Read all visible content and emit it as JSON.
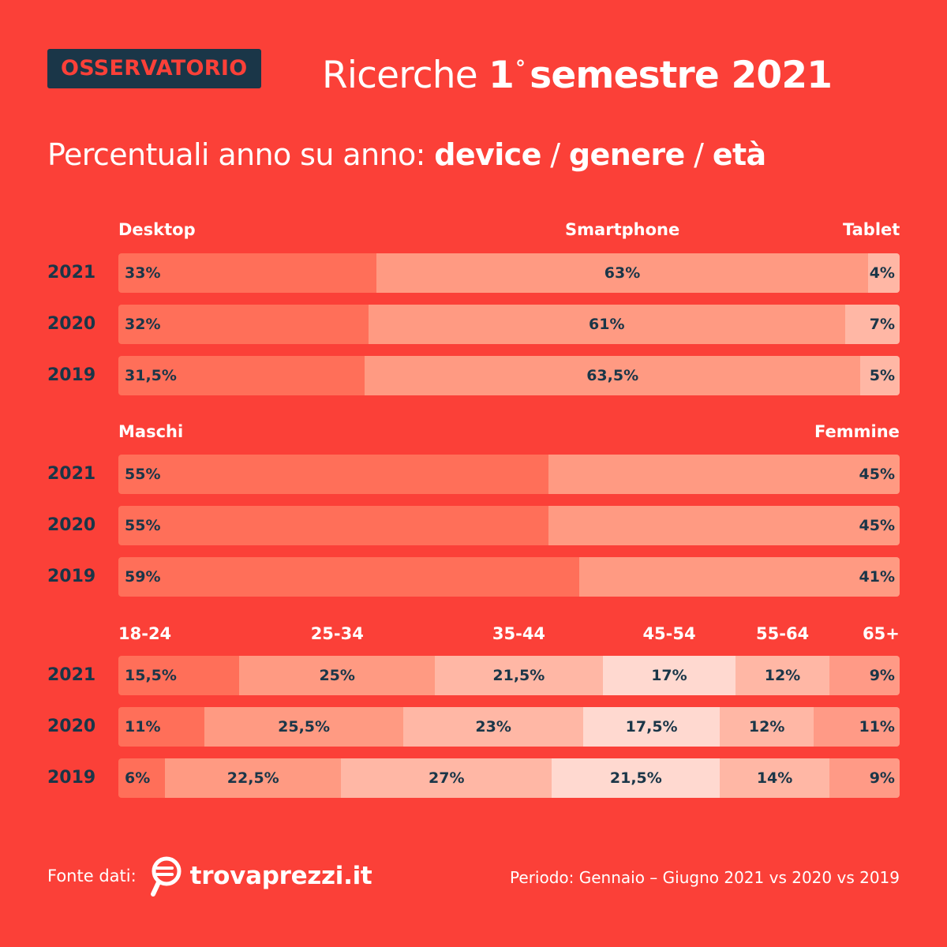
{
  "header": {
    "badge": "OSSERVATORIO",
    "title_prefix": "Ricerche",
    "title_number": "1",
    "title_degree": "°",
    "title_rest": "semestre 2021"
  },
  "subtitle": {
    "prefix": "Percentuali anno su anno:",
    "w1": "device",
    "sep1": "/",
    "w2": "genere",
    "sep2": "/",
    "w3": "età"
  },
  "footer": {
    "source_label": "Fonte dati:",
    "brand": "trovaprezzi.it",
    "period": "Periodo: Gennaio – Giugno 2021 vs 2020 vs 2019"
  },
  "colors": {
    "background": "#FB4038",
    "dark": "#1A3648",
    "seg1": "#FF6F59",
    "seg2": "#FF9A82",
    "seg3": "#FFB7A5",
    "seg4": "#FFD9D0",
    "seg6": "#FF9A86"
  },
  "chart_data": [
    {
      "type": "bar",
      "stacked": true,
      "orientation": "horizontal",
      "categories": [
        "2021",
        "2020",
        "2019"
      ],
      "series": [
        {
          "name": "Desktop",
          "values": [
            33,
            32,
            31.5
          ],
          "labels": [
            "33%",
            "32%",
            "31,5%"
          ]
        },
        {
          "name": "Smartphone",
          "values": [
            63,
            61,
            63.5
          ],
          "labels": [
            "63%",
            "61%",
            "63,5%"
          ]
        },
        {
          "name": "Tablet",
          "values": [
            4,
            7,
            5
          ],
          "labels": [
            "4%",
            "7%",
            "5%"
          ]
        }
      ]
    },
    {
      "type": "bar",
      "stacked": true,
      "orientation": "horizontal",
      "categories": [
        "2021",
        "2020",
        "2019"
      ],
      "series": [
        {
          "name": "Maschi",
          "values": [
            55,
            55,
            59
          ],
          "labels": [
            "55%",
            "55%",
            "59%"
          ]
        },
        {
          "name": "Femmine",
          "values": [
            45,
            45,
            41
          ],
          "labels": [
            "45%",
            "45%",
            "41%"
          ]
        }
      ]
    },
    {
      "type": "bar",
      "stacked": true,
      "orientation": "horizontal",
      "categories": [
        "2021",
        "2020",
        "2019"
      ],
      "series": [
        {
          "name": "18-24",
          "values": [
            15.5,
            11,
            6
          ],
          "labels": [
            "15,5%",
            "11%",
            "6%"
          ]
        },
        {
          "name": "25-34",
          "values": [
            25,
            25.5,
            22.5
          ],
          "labels": [
            "25%",
            "25,5%",
            "22,5%"
          ]
        },
        {
          "name": "35-44",
          "values": [
            21.5,
            23,
            27
          ],
          "labels": [
            "21,5%",
            "23%",
            "27%"
          ]
        },
        {
          "name": "45-54",
          "values": [
            17,
            17.5,
            21.5
          ],
          "labels": [
            "17%",
            "17,5%",
            "21,5%"
          ]
        },
        {
          "name": "55-64",
          "values": [
            12,
            12,
            14
          ],
          "labels": [
            "12%",
            "12%",
            "14%"
          ]
        },
        {
          "name": "65+",
          "values": [
            9,
            11,
            9
          ],
          "labels": [
            "9%",
            "11%",
            "9%"
          ]
        }
      ]
    }
  ]
}
